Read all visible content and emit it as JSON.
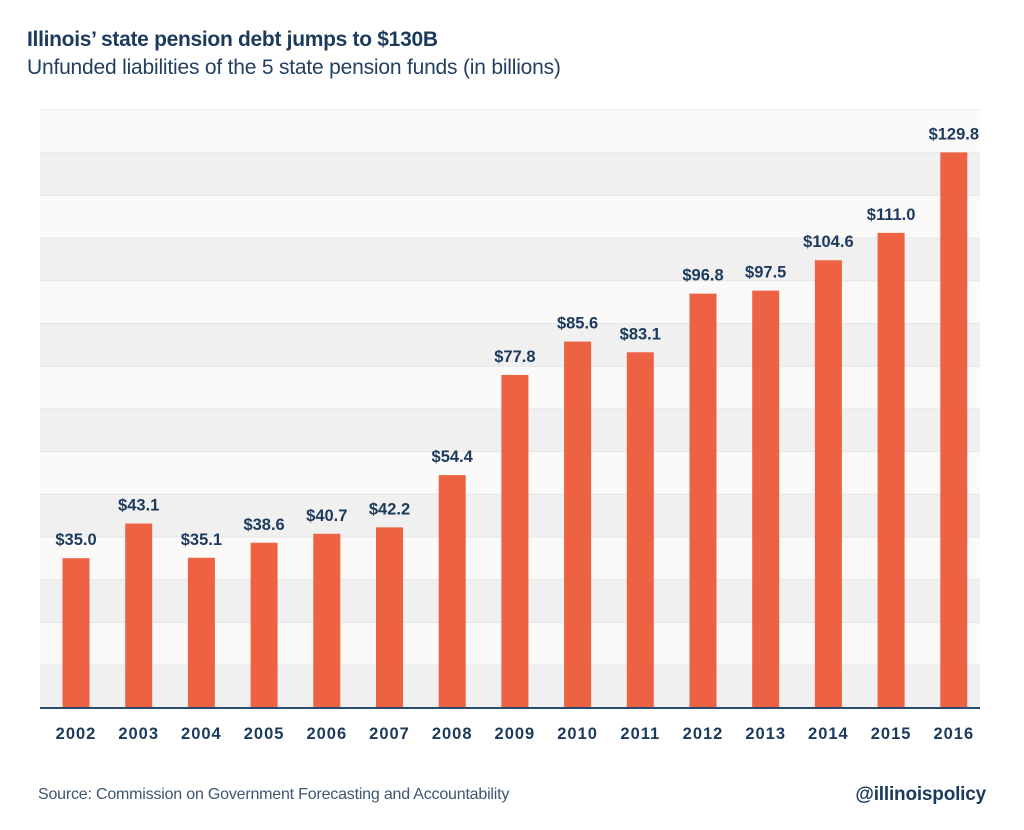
{
  "header": {
    "title": "Illinois’ state pension debt jumps to $130B",
    "subtitle": "Unfunded liabilities of the 5 state pension funds (in billions)"
  },
  "footer": {
    "source": "Source: Commission on Government Forecasting and Accountability",
    "handle": "@illinoispolicy"
  },
  "colors": {
    "bar": "#ee6244",
    "label": "#1b3a5c",
    "band_light": "#fbfaf9",
    "band_dark": "#f0f0f0",
    "baseline": "#2c4a6b"
  },
  "chart_data": {
    "type": "bar",
    "title": "Illinois’ state pension debt jumps to $130B",
    "subtitle": "Unfunded liabilities of the 5 state pension funds (in billions)",
    "xlabel": "",
    "ylabel": "",
    "categories": [
      "2002",
      "2003",
      "2004",
      "2005",
      "2006",
      "2007",
      "2008",
      "2009",
      "2010",
      "2011",
      "2012",
      "2013",
      "2014",
      "2015",
      "2016"
    ],
    "values": [
      35.0,
      43.1,
      35.1,
      38.6,
      40.7,
      42.2,
      54.4,
      77.8,
      85.6,
      83.1,
      96.8,
      97.5,
      104.6,
      111.0,
      129.8
    ],
    "data_labels": [
      "$35.0",
      "$43.1",
      "$35.1",
      "$38.6",
      "$40.7",
      "$42.2",
      "$54.4",
      "$77.8",
      "$85.6",
      "$83.1",
      "$96.8",
      "$97.5",
      "$104.6",
      "$111.0",
      "$129.8"
    ],
    "ylim": [
      0,
      139.7
    ],
    "grid": "alternating horizontal bands",
    "legend": "none",
    "y_axis_labels": "none"
  }
}
